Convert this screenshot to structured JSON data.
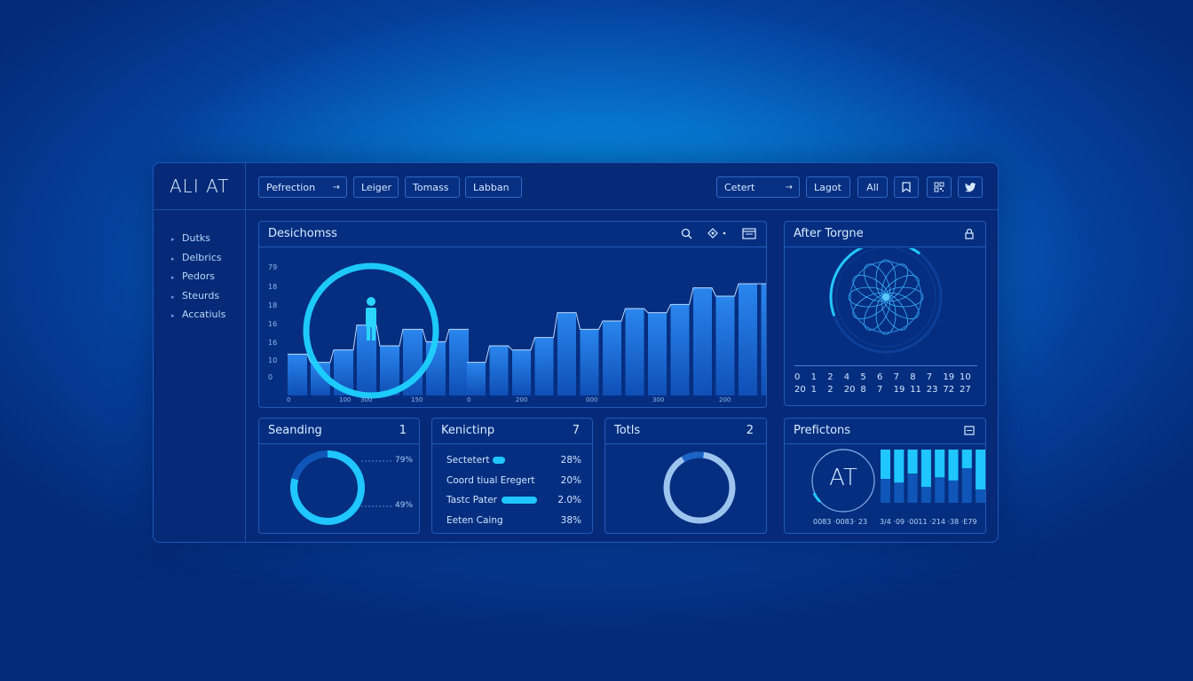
{
  "app": {
    "title": "ALI AT"
  },
  "toolbar": {
    "buttons": [
      {
        "label": "Pefrection",
        "arrow": "→"
      },
      {
        "label": "Leiger"
      },
      {
        "label": "Tomass"
      },
      {
        "label": "Labban"
      }
    ],
    "right_buttons": [
      {
        "label": "Cetert",
        "arrow": "→"
      },
      {
        "label": "Lagot"
      },
      {
        "label": "All"
      }
    ],
    "icons": [
      "bookmark-icon",
      "qr-code-icon",
      "twitter-icon"
    ]
  },
  "sidebar": {
    "items": [
      {
        "label": "Dutks"
      },
      {
        "label": "Delbrics"
      },
      {
        "label": "Pedors"
      },
      {
        "label": "Steurds"
      },
      {
        "label": "Accatiuls"
      }
    ]
  },
  "main_chart": {
    "title": "Desichomss",
    "icons": [
      "search-icon",
      "filter-icon",
      "window-icon"
    ],
    "y_ticks": [
      "79",
      "18",
      "18",
      "16",
      "16",
      "10",
      "0"
    ],
    "x_ticks": [
      "0",
      "100",
      "300",
      "150",
      "0",
      "200",
      "000",
      "300",
      "200"
    ]
  },
  "chart_data": {
    "type": "bar",
    "title": "Desichomss",
    "series": [
      {
        "values": [
          10,
          8,
          11,
          17,
          12,
          16,
          13,
          16
        ]
      },
      {
        "values": [
          8,
          12,
          11,
          14,
          20,
          16,
          18,
          21,
          20,
          22,
          26,
          24,
          27,
          27,
          22
        ]
      }
    ]
  },
  "after_panel": {
    "title": "After Torgne",
    "row1": [
      "0",
      "1",
      "2",
      "4",
      "5",
      "6",
      "7",
      "8",
      "7",
      "19",
      "10"
    ],
    "row2": [
      "20",
      "1",
      "2",
      "20",
      "8",
      "7",
      "19",
      "11",
      "23",
      "72",
      "27"
    ]
  },
  "seanding": {
    "title": "Seanding",
    "count": "1",
    "pct_top": "79%",
    "pct_bottom": "49%",
    "donut_fill": 0.79
  },
  "kenicting": {
    "title": "Kenictinp",
    "count": "7",
    "rows": [
      {
        "label": "Sectetert",
        "pct": "28%"
      },
      {
        "label": "Coord tiual Eregert",
        "pct": "20%"
      },
      {
        "label": "Tastc Pater",
        "pct": "2.0%"
      },
      {
        "label": "Eeten Caing",
        "pct": "38%"
      }
    ]
  },
  "totls": {
    "title": "Totls",
    "count": "2"
  },
  "prefictons": {
    "title": "Prefictons",
    "badge": "AT",
    "footer_left": "0083 ·0083· 23",
    "footer_right": "3/4 ·09 ·0011 ·214 ·38 ·E79",
    "bar_fills": [
      0.55,
      0.62,
      0.45,
      0.7,
      0.52,
      0.58,
      0.35,
      0.75
    ]
  },
  "colors": {
    "accent": "#1fc6ff",
    "panel": "#062e80",
    "border": "#1f5bb8",
    "bar": "#1b6ed8"
  }
}
